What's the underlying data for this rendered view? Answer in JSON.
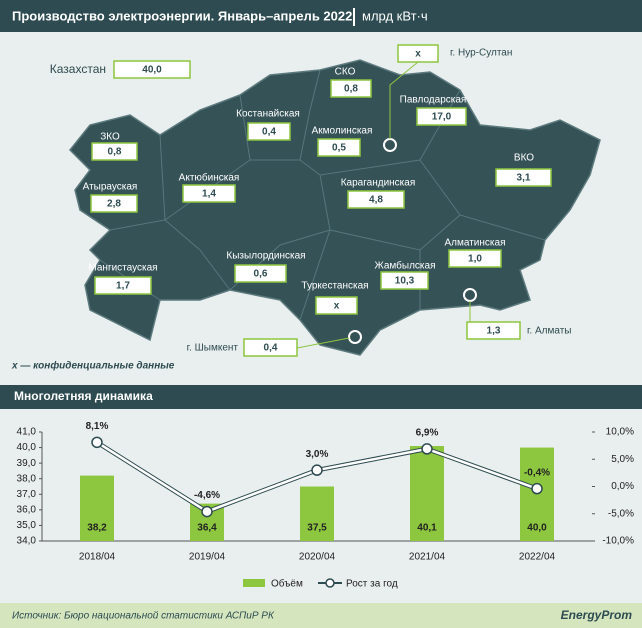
{
  "header": {
    "title": "Производство электроэнергии. Январь–апрель 2022",
    "unit": "млрд кВт·ч"
  },
  "map": {
    "regions": [
      {
        "label": "Казахстан",
        "value": "40,0"
      },
      {
        "label": "г. Нур-Султан",
        "value": "x"
      },
      {
        "label": "СКО",
        "value": "0,8"
      },
      {
        "label": "Павлодарская",
        "value": "17,0"
      },
      {
        "label": "Костанайская",
        "value": "0,4"
      },
      {
        "label": "Акмолинская",
        "value": "0,5"
      },
      {
        "label": "ЗКО",
        "value": "0,8"
      },
      {
        "label": "ВКО",
        "value": "3,1"
      },
      {
        "label": "Актюбинская",
        "value": "1,4"
      },
      {
        "label": "Карагандинская",
        "value": "4,8"
      },
      {
        "label": "Атырауская",
        "value": "2,8"
      },
      {
        "label": "Алматинская",
        "value": "1,0"
      },
      {
        "label": "Кызылординская",
        "value": "0,6"
      },
      {
        "label": "Жамбылская",
        "value": "10,3"
      },
      {
        "label": "Мангистауская",
        "value": "1,7"
      },
      {
        "label": "Туркестанская",
        "value": "x"
      },
      {
        "label": "г. Шымкент",
        "value": "0,4"
      },
      {
        "label": "г. Алматы",
        "value": "1,3"
      }
    ],
    "note": "x — конфиденциальные данные"
  },
  "section_title": "Многолетняя динамика",
  "chart_data": {
    "type": "bar-line",
    "categories": [
      "2018/04",
      "2019/04",
      "2020/04",
      "2021/04",
      "2022/04"
    ],
    "series": [
      {
        "name": "Объём",
        "type": "bar",
        "color": "#8dc63f",
        "values": [
          38.2,
          36.4,
          37.5,
          40.1,
          40.0
        ],
        "value_labels": [
          "38,2",
          "36,4",
          "37,5",
          "40,1",
          "40,0"
        ]
      },
      {
        "name": "Рост за год",
        "type": "line",
        "axis": "y2",
        "color": "#ffffff",
        "values": [
          8.1,
          -4.6,
          3.0,
          6.9,
          -0.4
        ],
        "value_labels": [
          "8,1%",
          "-4,6%",
          "3,0%",
          "6,9%",
          "-0,4%"
        ]
      }
    ],
    "ylim": [
      34,
      41
    ],
    "yticks": [
      {
        "value": 34,
        "label": "34,0"
      },
      {
        "value": 35,
        "label": "35,0"
      },
      {
        "value": 36,
        "label": "36,0"
      },
      {
        "value": 37,
        "label": "37,0"
      },
      {
        "value": 38,
        "label": "38,0"
      },
      {
        "value": 39,
        "label": "39,0"
      },
      {
        "value": 40,
        "label": "40,0"
      },
      {
        "value": 41,
        "label": "41,0"
      }
    ],
    "y2lim": [
      -10,
      10
    ],
    "y2ticks": [
      {
        "value": -10,
        "label": "-10,0%"
      },
      {
        "value": -5,
        "label": "-5,0%"
      },
      {
        "value": 0,
        "label": "0,0%"
      },
      {
        "value": 5,
        "label": "5,0%"
      },
      {
        "value": 10,
        "label": "10,0%"
      }
    ]
  },
  "footer": {
    "source": "Источник: Бюро национальной статистики АСПиР РК",
    "logo": "EnergyProm"
  }
}
